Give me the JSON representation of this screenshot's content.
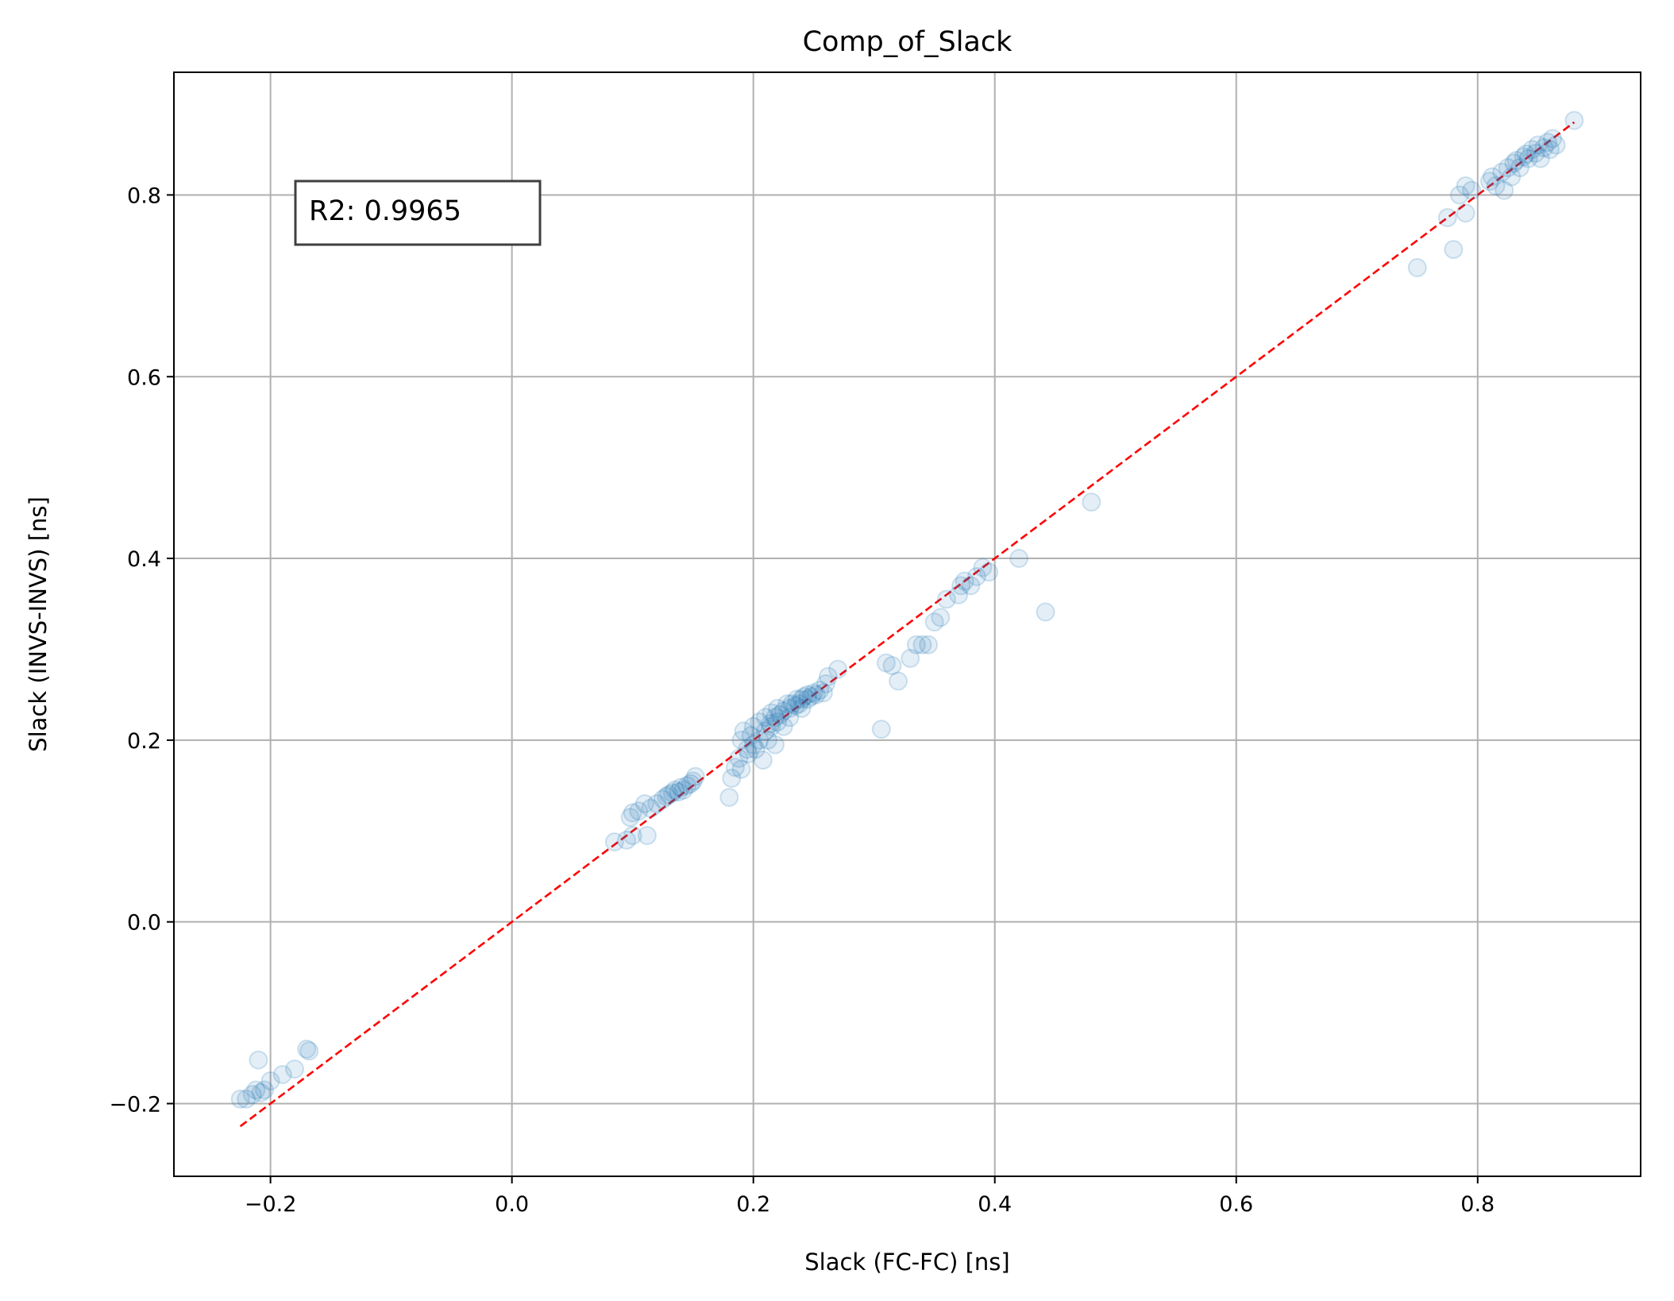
{
  "chart_data": {
    "type": "scatter",
    "title": "Comp_of_Slack",
    "xlabel": "Slack (FC-FC) [ns]",
    "ylabel": "Slack (INVS-INVS) [ns]",
    "xlim": [
      -0.28,
      0.935
    ],
    "ylim": [
      -0.28,
      0.935
    ],
    "xticks": [
      -0.2,
      0.0,
      0.2,
      0.4,
      0.6,
      0.8
    ],
    "yticks": [
      -0.2,
      0.0,
      0.2,
      0.4,
      0.6,
      0.8
    ],
    "xtick_labels": [
      "−0.2",
      "0.0",
      "0.2",
      "0.4",
      "0.6",
      "0.8"
    ],
    "ytick_labels": [
      "−0.2",
      "0.0",
      "0.2",
      "0.4",
      "0.6",
      "0.8"
    ],
    "grid": true,
    "annotation": "R2: 0.9965",
    "marker_color": "#1f77b4",
    "reference_line": {
      "from": [
        -0.225,
        -0.225
      ],
      "to": [
        0.88,
        0.88
      ],
      "color": "#ff0000",
      "style": "dashed"
    },
    "points": [
      [
        -0.225,
        -0.195
      ],
      [
        -0.22,
        -0.195
      ],
      [
        -0.215,
        -0.19
      ],
      [
        -0.212,
        -0.185
      ],
      [
        -0.208,
        -0.188
      ],
      [
        -0.205,
        -0.185
      ],
      [
        -0.21,
        -0.152
      ],
      [
        -0.2,
        -0.175
      ],
      [
        -0.19,
        -0.168
      ],
      [
        -0.18,
        -0.162
      ],
      [
        -0.17,
        -0.14
      ],
      [
        -0.168,
        -0.142
      ],
      [
        0.085,
        0.088
      ],
      [
        0.095,
        0.09
      ],
      [
        0.1,
        0.095
      ],
      [
        0.112,
        0.095
      ],
      [
        0.098,
        0.115
      ],
      [
        0.1,
        0.12
      ],
      [
        0.105,
        0.122
      ],
      [
        0.11,
        0.13
      ],
      [
        0.115,
        0.125
      ],
      [
        0.12,
        0.13
      ],
      [
        0.125,
        0.135
      ],
      [
        0.128,
        0.138
      ],
      [
        0.13,
        0.14
      ],
      [
        0.133,
        0.142
      ],
      [
        0.135,
        0.145
      ],
      [
        0.138,
        0.143
      ],
      [
        0.14,
        0.148
      ],
      [
        0.142,
        0.145
      ],
      [
        0.145,
        0.15
      ],
      [
        0.148,
        0.152
      ],
      [
        0.15,
        0.155
      ],
      [
        0.152,
        0.16
      ],
      [
        0.18,
        0.137
      ],
      [
        0.182,
        0.158
      ],
      [
        0.185,
        0.17
      ],
      [
        0.19,
        0.168
      ],
      [
        0.188,
        0.18
      ],
      [
        0.19,
        0.2
      ],
      [
        0.192,
        0.21
      ],
      [
        0.195,
        0.19
      ],
      [
        0.196,
        0.185
      ],
      [
        0.198,
        0.205
      ],
      [
        0.2,
        0.215
      ],
      [
        0.2,
        0.195
      ],
      [
        0.202,
        0.19
      ],
      [
        0.205,
        0.22
      ],
      [
        0.205,
        0.2
      ],
      [
        0.208,
        0.178
      ],
      [
        0.21,
        0.21
      ],
      [
        0.21,
        0.225
      ],
      [
        0.212,
        0.2
      ],
      [
        0.214,
        0.218
      ],
      [
        0.215,
        0.23
      ],
      [
        0.215,
        0.215
      ],
      [
        0.218,
        0.195
      ],
      [
        0.218,
        0.225
      ],
      [
        0.22,
        0.22
      ],
      [
        0.22,
        0.235
      ],
      [
        0.222,
        0.228
      ],
      [
        0.225,
        0.232
      ],
      [
        0.225,
        0.215
      ],
      [
        0.228,
        0.24
      ],
      [
        0.23,
        0.235
      ],
      [
        0.23,
        0.225
      ],
      [
        0.232,
        0.24
      ],
      [
        0.235,
        0.238
      ],
      [
        0.236,
        0.245
      ],
      [
        0.238,
        0.24
      ],
      [
        0.24,
        0.245
      ],
      [
        0.24,
        0.235
      ],
      [
        0.242,
        0.248
      ],
      [
        0.245,
        0.245
      ],
      [
        0.245,
        0.25
      ],
      [
        0.248,
        0.248
      ],
      [
        0.25,
        0.252
      ],
      [
        0.252,
        0.25
      ],
      [
        0.255,
        0.255
      ],
      [
        0.258,
        0.252
      ],
      [
        0.26,
        0.262
      ],
      [
        0.262,
        0.27
      ],
      [
        0.27,
        0.278
      ],
      [
        0.306,
        0.212
      ],
      [
        0.31,
        0.285
      ],
      [
        0.315,
        0.282
      ],
      [
        0.32,
        0.265
      ],
      [
        0.33,
        0.29
      ],
      [
        0.335,
        0.305
      ],
      [
        0.34,
        0.305
      ],
      [
        0.345,
        0.305
      ],
      [
        0.35,
        0.33
      ],
      [
        0.355,
        0.335
      ],
      [
        0.36,
        0.355
      ],
      [
        0.37,
        0.36
      ],
      [
        0.372,
        0.37
      ],
      [
        0.375,
        0.375
      ],
      [
        0.38,
        0.37
      ],
      [
        0.385,
        0.38
      ],
      [
        0.39,
        0.39
      ],
      [
        0.395,
        0.385
      ],
      [
        0.42,
        0.4
      ],
      [
        0.442,
        0.341
      ],
      [
        0.48,
        0.462
      ],
      [
        0.75,
        0.72
      ],
      [
        0.775,
        0.775
      ],
      [
        0.78,
        0.74
      ],
      [
        0.785,
        0.8
      ],
      [
        0.79,
        0.78
      ],
      [
        0.79,
        0.81
      ],
      [
        0.795,
        0.805
      ],
      [
        0.81,
        0.815
      ],
      [
        0.812,
        0.82
      ],
      [
        0.815,
        0.81
      ],
      [
        0.82,
        0.825
      ],
      [
        0.822,
        0.805
      ],
      [
        0.825,
        0.83
      ],
      [
        0.828,
        0.82
      ],
      [
        0.83,
        0.835
      ],
      [
        0.832,
        0.838
      ],
      [
        0.835,
        0.83
      ],
      [
        0.838,
        0.842
      ],
      [
        0.84,
        0.845
      ],
      [
        0.842,
        0.84
      ],
      [
        0.845,
        0.85
      ],
      [
        0.848,
        0.846
      ],
      [
        0.85,
        0.855
      ],
      [
        0.852,
        0.84
      ],
      [
        0.855,
        0.852
      ],
      [
        0.858,
        0.858
      ],
      [
        0.86,
        0.85
      ],
      [
        0.862,
        0.862
      ],
      [
        0.865,
        0.855
      ],
      [
        0.88,
        0.882
      ]
    ]
  }
}
